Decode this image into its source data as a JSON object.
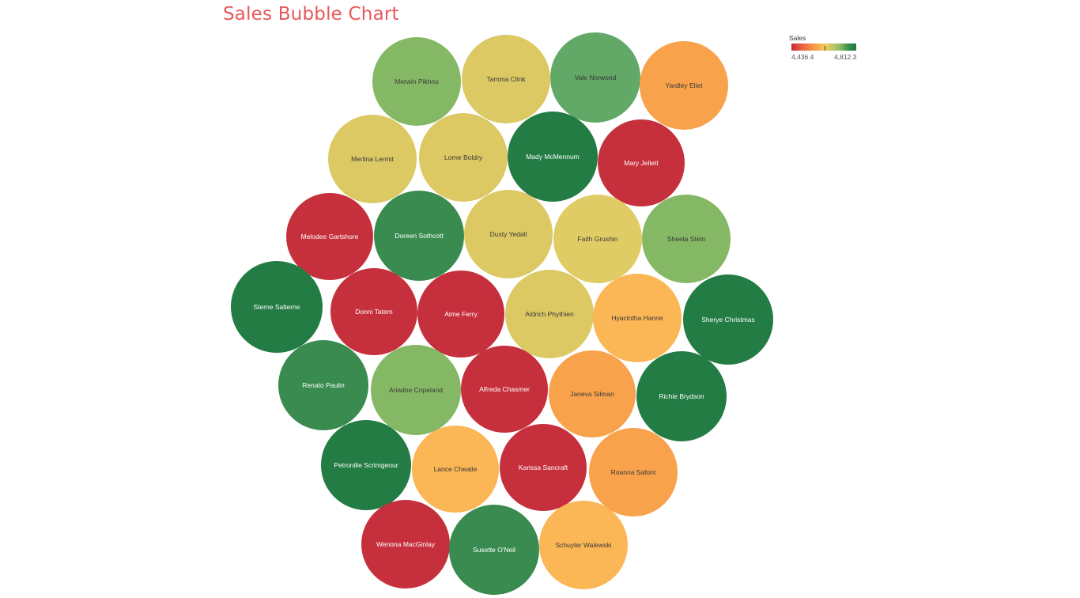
{
  "chart_data": {
    "type": "bubble",
    "title": "Sales Bubble Chart",
    "legend": {
      "title": "Sales",
      "min_label": "4,436.4",
      "max_label": "4,812.3",
      "position": "top-right"
    },
    "items": [
      {
        "name": "Merwin Pikhno",
        "color": "#84b864",
        "dark_text": true
      },
      {
        "name": "Tamma Clink",
        "color": "#dcc964",
        "dark_text": true
      },
      {
        "name": "Vale Norwood",
        "color": "#62a866",
        "dark_text": true
      },
      {
        "name": "Yardley Eliet",
        "color": "#f9a24c",
        "dark_text": true
      },
      {
        "name": "Merlina Lermit",
        "color": "#dcc964",
        "dark_text": true
      },
      {
        "name": "Lorne Boldry",
        "color": "#dcc964",
        "dark_text": true
      },
      {
        "name": "Mady McMennum",
        "color": "#237c43",
        "dark_text": false
      },
      {
        "name": "Mary Jellett",
        "color": "#c5303c",
        "dark_text": false
      },
      {
        "name": "Melodee Gartshore",
        "color": "#c5303c",
        "dark_text": false
      },
      {
        "name": "Doreen Sothcott",
        "color": "#3a8b50",
        "dark_text": false
      },
      {
        "name": "Dusty Yedall",
        "color": "#dcc964",
        "dark_text": true
      },
      {
        "name": "Faith Grushin",
        "color": "#e0cc64",
        "dark_text": true
      },
      {
        "name": "Sheela Stein",
        "color": "#84b864",
        "dark_text": true
      },
      {
        "name": "Sterne Salterne",
        "color": "#237c43",
        "dark_text": false
      },
      {
        "name": "Donni Tatem",
        "color": "#c5303c",
        "dark_text": false
      },
      {
        "name": "Aime Ferry",
        "color": "#c5303c",
        "dark_text": false
      },
      {
        "name": "Aldrich Phythien",
        "color": "#dcc964",
        "dark_text": true
      },
      {
        "name": "Hyacintha Hanne",
        "color": "#fbb655",
        "dark_text": true
      },
      {
        "name": "Sherye Christmas",
        "color": "#237c43",
        "dark_text": false
      },
      {
        "name": "Renato Paulin",
        "color": "#3a8b50",
        "dark_text": false
      },
      {
        "name": "Ariadne Copeland",
        "color": "#84b864",
        "dark_text": true
      },
      {
        "name": "Alfreda Chasmer",
        "color": "#c5303c",
        "dark_text": false
      },
      {
        "name": "Janeva Silman",
        "color": "#f9a24c",
        "dark_text": true
      },
      {
        "name": "Richie Brydson",
        "color": "#237c43",
        "dark_text": false
      },
      {
        "name": "Petronille Scrimgeour",
        "color": "#237c43",
        "dark_text": false
      },
      {
        "name": "Lance Cheatle",
        "color": "#fbb655",
        "dark_text": true
      },
      {
        "name": "Karissa Sancraft",
        "color": "#c5303c",
        "dark_text": false
      },
      {
        "name": "Roanna Safont",
        "color": "#f9a24c",
        "dark_text": true
      },
      {
        "name": "Wenona MacGinlay",
        "color": "#c5303c",
        "dark_text": false
      },
      {
        "name": "Susette O'Neil",
        "color": "#3a8b50",
        "dark_text": false
      },
      {
        "name": "Schuyler Walewski",
        "color": "#fbb655",
        "dark_text": true
      }
    ]
  }
}
